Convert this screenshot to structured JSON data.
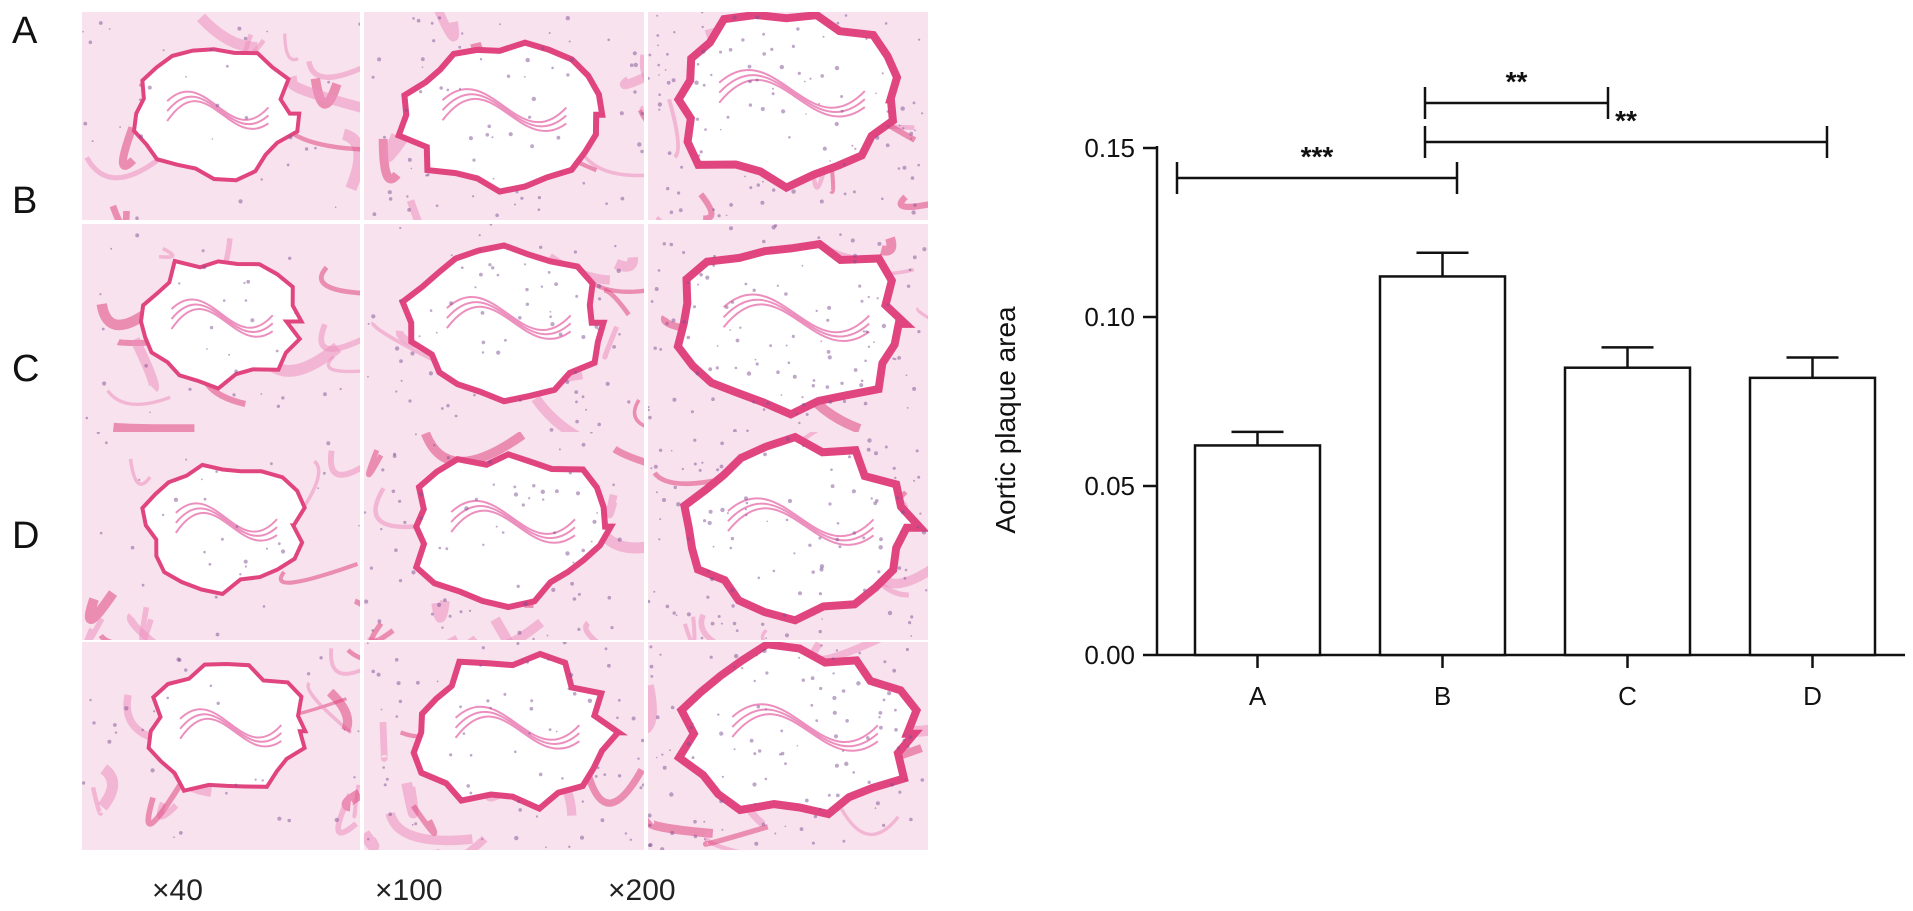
{
  "panels": {
    "rows": [
      "A",
      "B",
      "C",
      "D"
    ],
    "magnifications": [
      "×40",
      "×100",
      "×200"
    ]
  },
  "chart_data": {
    "type": "bar",
    "categories": [
      "A",
      "B",
      "C",
      "D"
    ],
    "values": [
      0.062,
      0.112,
      0.085,
      0.082
    ],
    "errors": [
      0.004,
      0.007,
      0.006,
      0.006
    ],
    "ylabel": "Aortic plaque area",
    "xlabel": "",
    "ylim": [
      0,
      0.15
    ],
    "yticks": [
      "0.00",
      "0.05",
      "0.10",
      "0.15"
    ],
    "yticks_values": [
      0,
      0.05,
      0.1,
      0.15
    ],
    "bar_fill": "#ffffff",
    "bar_stroke": "#111111",
    "significance": [
      {
        "from": "A",
        "to": "B",
        "label": "***"
      },
      {
        "from": "B",
        "to": "C",
        "label": "**"
      },
      {
        "from": "B",
        "to": "D",
        "label": "**"
      }
    ]
  },
  "colors": {
    "stain_light": "#f8e2ee",
    "stain_medium": "#ec8fbe",
    "stain_dark": "#e0457f",
    "nuclei": "#7d4f93"
  }
}
